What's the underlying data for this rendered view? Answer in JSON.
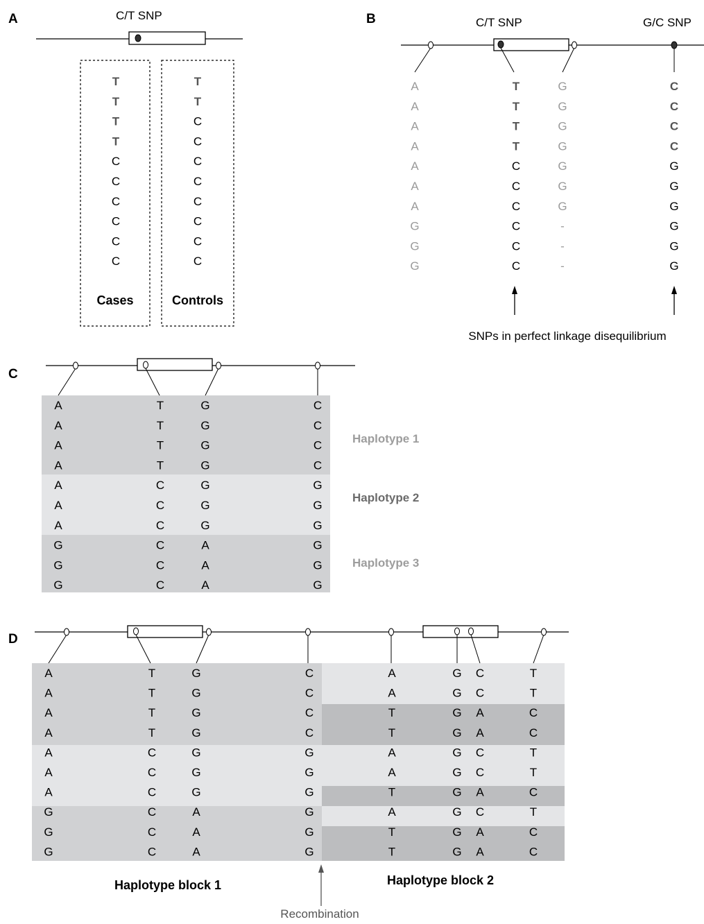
{
  "panels": [
    "A",
    "B",
    "C",
    "D"
  ],
  "colors": {
    "row_dark": "#d0d1d3",
    "row_light": "#e4e5e7",
    "row_darker": "#bcbdbf",
    "gray_text": "#9a9a9a",
    "dark_gray_text": "#555555"
  },
  "panel_a": {
    "snp_label": "C/T SNP",
    "cases_label": "Cases",
    "controls_label": "Controls",
    "cases": [
      "T",
      "T",
      "T",
      "T",
      "C",
      "C",
      "C",
      "C",
      "C",
      "C"
    ],
    "controls": [
      "T",
      "T",
      "C",
      "C",
      "C",
      "C",
      "C",
      "C",
      "C",
      "C"
    ]
  },
  "panel_b": {
    "snp1_label": "C/T SNP",
    "snp2_label": "G/C SNP",
    "caption": "SNPs in perfect linkage disequilibrium",
    "columns": [
      [
        "A",
        "A",
        "A",
        "A",
        "A",
        "A",
        "A",
        "G",
        "G",
        "G"
      ],
      [
        "T",
        "T",
        "T",
        "T",
        "C",
        "C",
        "C",
        "C",
        "C",
        "C"
      ],
      [
        "G",
        "G",
        "G",
        "G",
        "G",
        "G",
        "G",
        "-",
        "-",
        "-"
      ],
      [
        "C",
        "C",
        "C",
        "C",
        "G",
        "G",
        "G",
        "G",
        "G",
        "G"
      ]
    ]
  },
  "panel_c": {
    "haplotype_labels": [
      "Haplotype 1",
      "Haplotype 2",
      "Haplotype 3"
    ],
    "rows": [
      [
        "A",
        "T",
        "G",
        "C"
      ],
      [
        "A",
        "T",
        "G",
        "C"
      ],
      [
        "A",
        "T",
        "G",
        "C"
      ],
      [
        "A",
        "T",
        "G",
        "C"
      ],
      [
        "A",
        "C",
        "G",
        "G"
      ],
      [
        "A",
        "C",
        "G",
        "G"
      ],
      [
        "A",
        "C",
        "G",
        "G"
      ],
      [
        "G",
        "C",
        "A",
        "G"
      ],
      [
        "G",
        "C",
        "A",
        "G"
      ],
      [
        "G",
        "C",
        "A",
        "G"
      ]
    ]
  },
  "panel_d": {
    "block1_label": "Haplotype block 1",
    "block2_label": "Haplotype block 2",
    "recombination_label": "Recombination",
    "block1_rows": [
      [
        "A",
        "T",
        "G",
        "C"
      ],
      [
        "A",
        "T",
        "G",
        "C"
      ],
      [
        "A",
        "T",
        "G",
        "C"
      ],
      [
        "A",
        "T",
        "G",
        "C"
      ],
      [
        "A",
        "C",
        "G",
        "G"
      ],
      [
        "A",
        "C",
        "G",
        "G"
      ],
      [
        "A",
        "C",
        "G",
        "G"
      ],
      [
        "G",
        "C",
        "A",
        "G"
      ],
      [
        "G",
        "C",
        "A",
        "G"
      ],
      [
        "G",
        "C",
        "A",
        "G"
      ]
    ],
    "block2_rows": [
      [
        "A",
        "G",
        "C",
        "T"
      ],
      [
        "A",
        "G",
        "C",
        "T"
      ],
      [
        "T",
        "G",
        "A",
        "C"
      ],
      [
        "T",
        "G",
        "A",
        "C"
      ],
      [
        "A",
        "G",
        "C",
        "T"
      ],
      [
        "A",
        "G",
        "C",
        "T"
      ],
      [
        "T",
        "G",
        "A",
        "C"
      ],
      [
        "A",
        "G",
        "C",
        "T"
      ],
      [
        "T",
        "G",
        "A",
        "C"
      ],
      [
        "T",
        "G",
        "A",
        "C"
      ]
    ]
  }
}
